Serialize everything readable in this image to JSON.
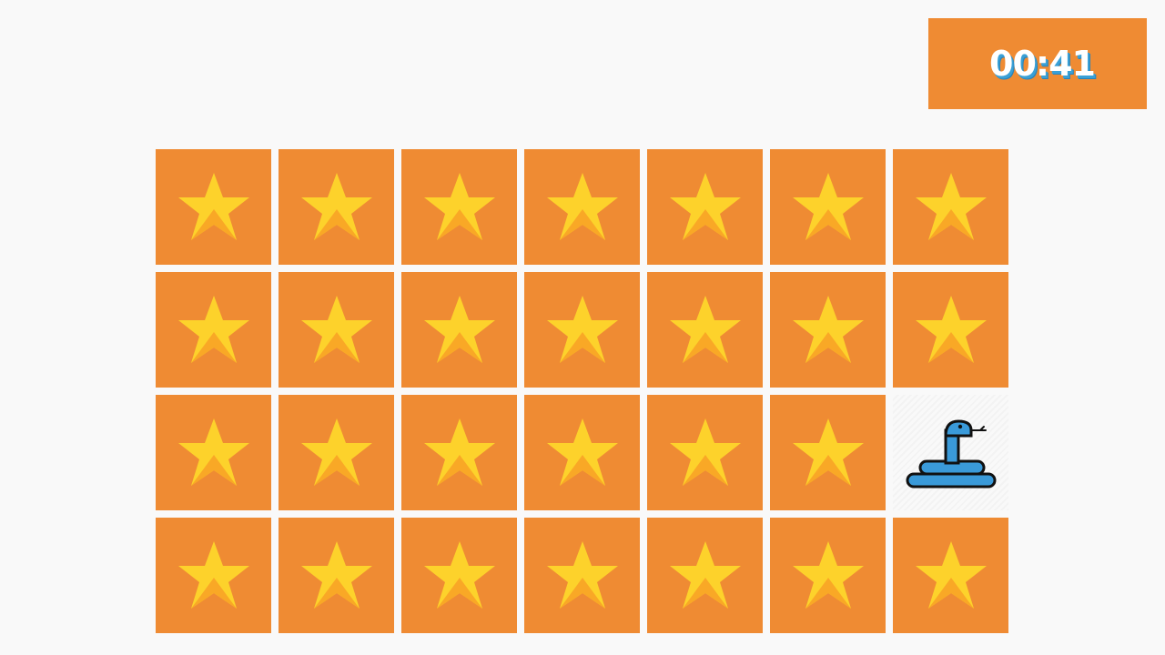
{
  "timer": {
    "text": "00:41"
  },
  "colors": {
    "card_back": "#ef8b33",
    "timer_bg": "#ef8b33",
    "star_light": "#fdd22b",
    "star_dark": "#f9a826",
    "snake_blue": "#3a9ad9",
    "outline": "#111111"
  },
  "board": {
    "rows": 4,
    "cols": 7,
    "cards": [
      {
        "state": "face-down",
        "icon": "star-icon"
      },
      {
        "state": "face-down",
        "icon": "star-icon"
      },
      {
        "state": "face-down",
        "icon": "star-icon"
      },
      {
        "state": "face-down",
        "icon": "star-icon"
      },
      {
        "state": "face-down",
        "icon": "star-icon"
      },
      {
        "state": "face-down",
        "icon": "star-icon"
      },
      {
        "state": "face-down",
        "icon": "star-icon"
      },
      {
        "state": "face-down",
        "icon": "star-icon"
      },
      {
        "state": "face-down",
        "icon": "star-icon"
      },
      {
        "state": "face-down",
        "icon": "star-icon"
      },
      {
        "state": "face-down",
        "icon": "star-icon"
      },
      {
        "state": "face-down",
        "icon": "star-icon"
      },
      {
        "state": "face-down",
        "icon": "star-icon"
      },
      {
        "state": "face-down",
        "icon": "star-icon"
      },
      {
        "state": "face-down",
        "icon": "star-icon"
      },
      {
        "state": "face-down",
        "icon": "star-icon"
      },
      {
        "state": "face-down",
        "icon": "star-icon"
      },
      {
        "state": "face-down",
        "icon": "star-icon"
      },
      {
        "state": "face-down",
        "icon": "star-icon"
      },
      {
        "state": "face-down",
        "icon": "star-icon"
      },
      {
        "state": "face-up",
        "icon": "snake-icon"
      },
      {
        "state": "face-down",
        "icon": "star-icon"
      },
      {
        "state": "face-down",
        "icon": "star-icon"
      },
      {
        "state": "face-down",
        "icon": "star-icon"
      },
      {
        "state": "face-down",
        "icon": "star-icon"
      },
      {
        "state": "face-down",
        "icon": "star-icon"
      },
      {
        "state": "face-down",
        "icon": "star-icon"
      },
      {
        "state": "face-down",
        "icon": "star-icon"
      }
    ]
  }
}
